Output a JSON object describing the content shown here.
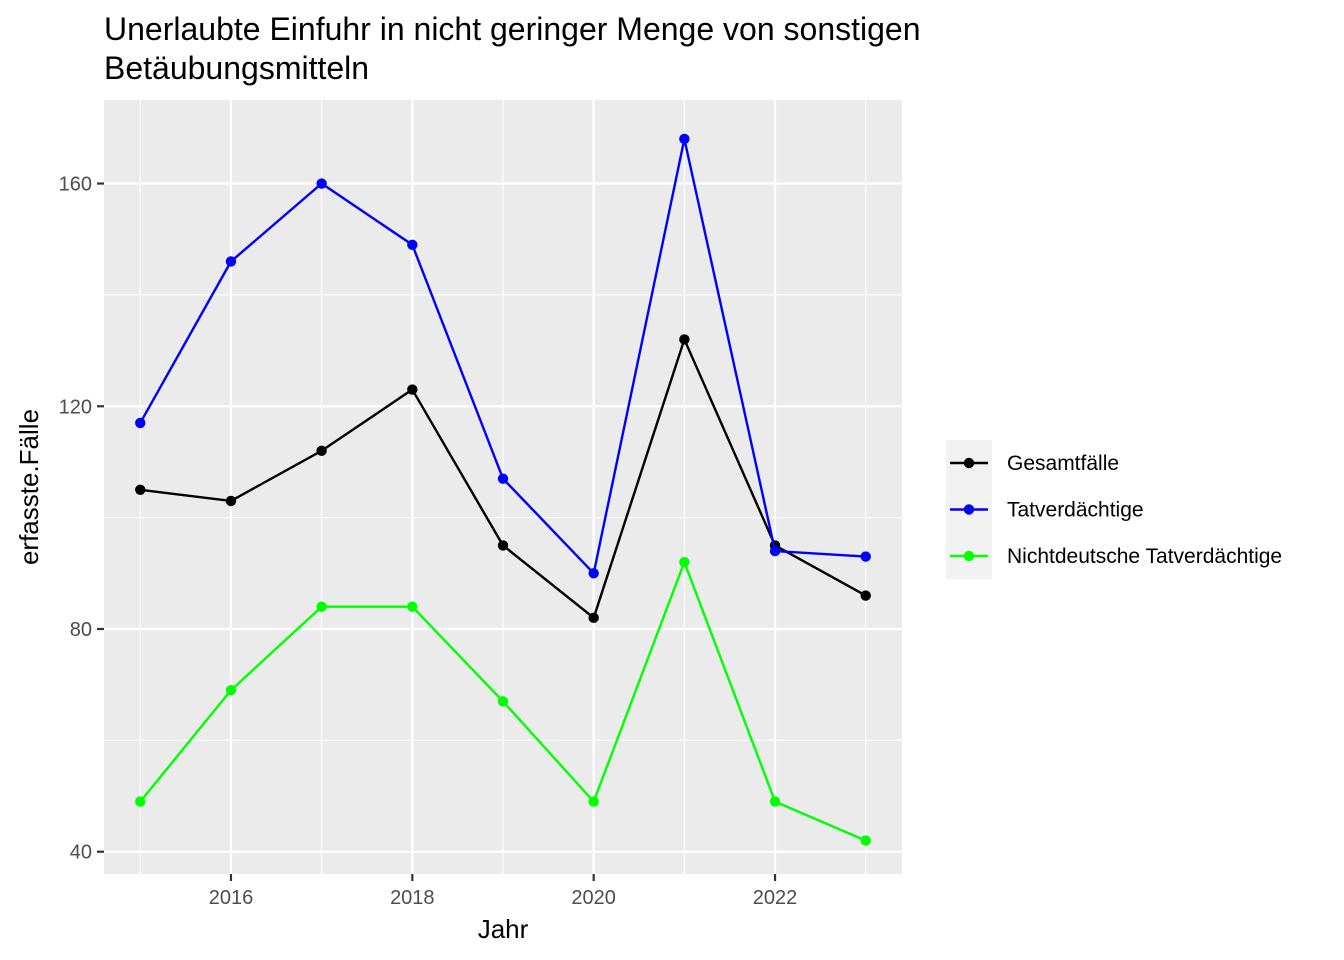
{
  "chart_data": {
    "type": "line",
    "title_lines": [
      "Unerlaubte Einfuhr in nicht geringer Menge von sonstigen",
      "Betäubungsmitteln"
    ],
    "xlabel": "Jahr",
    "ylabel": "erfasste.Fälle",
    "x": [
      2015,
      2016,
      2017,
      2018,
      2019,
      2020,
      2021,
      2022,
      2023
    ],
    "xlim": [
      2014.6,
      2023.4
    ],
    "ylim": [
      36,
      175
    ],
    "x_ticks": [
      2016,
      2018,
      2020,
      2022
    ],
    "x_tick_labels": [
      "2016",
      "2018",
      "2020",
      "2022"
    ],
    "y_ticks": [
      40,
      80,
      120,
      160
    ],
    "y_tick_labels": [
      "40",
      "80",
      "120",
      "160"
    ],
    "grid": true,
    "legend_position": "right",
    "series": [
      {
        "name": "Gesamtfälle",
        "color": "#000000",
        "values": [
          105,
          103,
          112,
          123,
          95,
          82,
          132,
          95,
          86
        ]
      },
      {
        "name": "Tatverdächtige",
        "color": "#0000ff",
        "values": [
          117,
          146,
          160,
          149,
          107,
          90,
          168,
          94,
          93
        ]
      },
      {
        "name": "Nichtdeutsche Tatverdächtige",
        "color": "#00ff00",
        "values": [
          49,
          69,
          84,
          84,
          67,
          49,
          92,
          49,
          42
        ]
      }
    ]
  }
}
